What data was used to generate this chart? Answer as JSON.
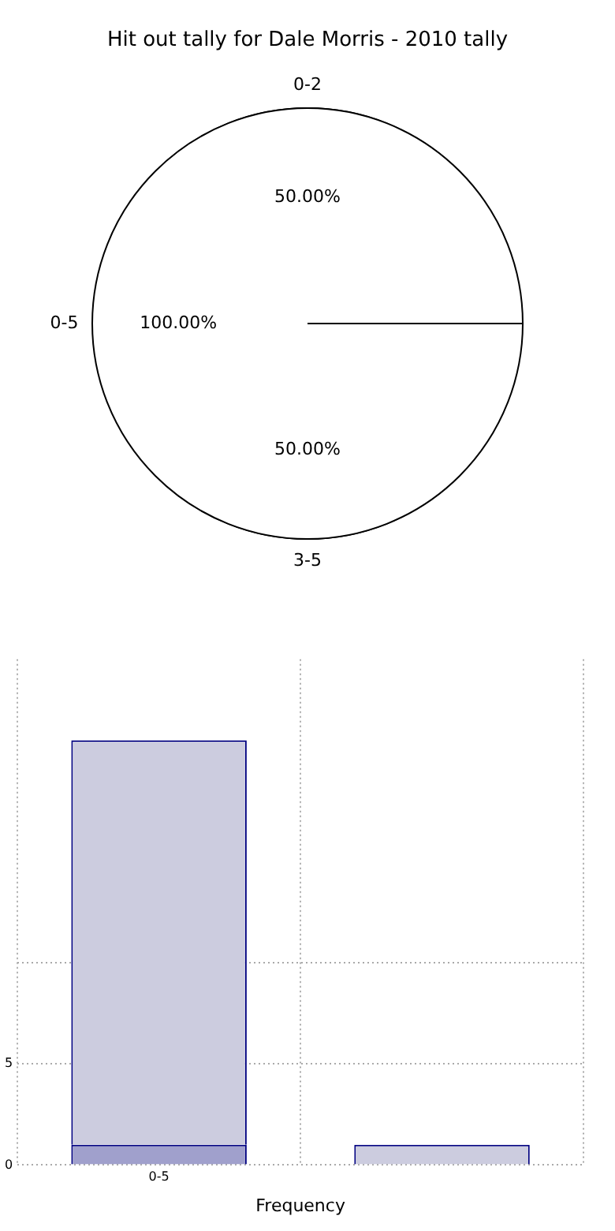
{
  "chart_data": [
    {
      "type": "pie",
      "title": "Hit out tally for Dale Morris - 2010 tally",
      "categories": [
        "0-2",
        "3-5"
      ],
      "values": [
        50,
        50
      ],
      "colors": [
        "#ffffff",
        "#e8eefc"
      ],
      "value_labels": [
        "50.00%",
        "50.00%"
      ]
    },
    {
      "type": "pie",
      "categories": [
        "0-5"
      ],
      "values": [
        100
      ],
      "colors": [
        "#ffffff"
      ],
      "value_labels": [
        "100.00%"
      ]
    },
    {
      "type": "bar",
      "xlabel": "Frequency",
      "categories": [
        "0-5",
        null
      ],
      "series": [
        {
          "color": "#a0a0cc",
          "values": [
            1,
            null
          ]
        },
        {
          "color": "#ccccdf",
          "values": [
            20,
            1
          ]
        }
      ],
      "stacked": true,
      "ylim": [
        0,
        25
      ],
      "yticks": [
        0,
        5,
        {
          "value": 10,
          "label": null
        }
      ],
      "grid": true
    }
  ]
}
